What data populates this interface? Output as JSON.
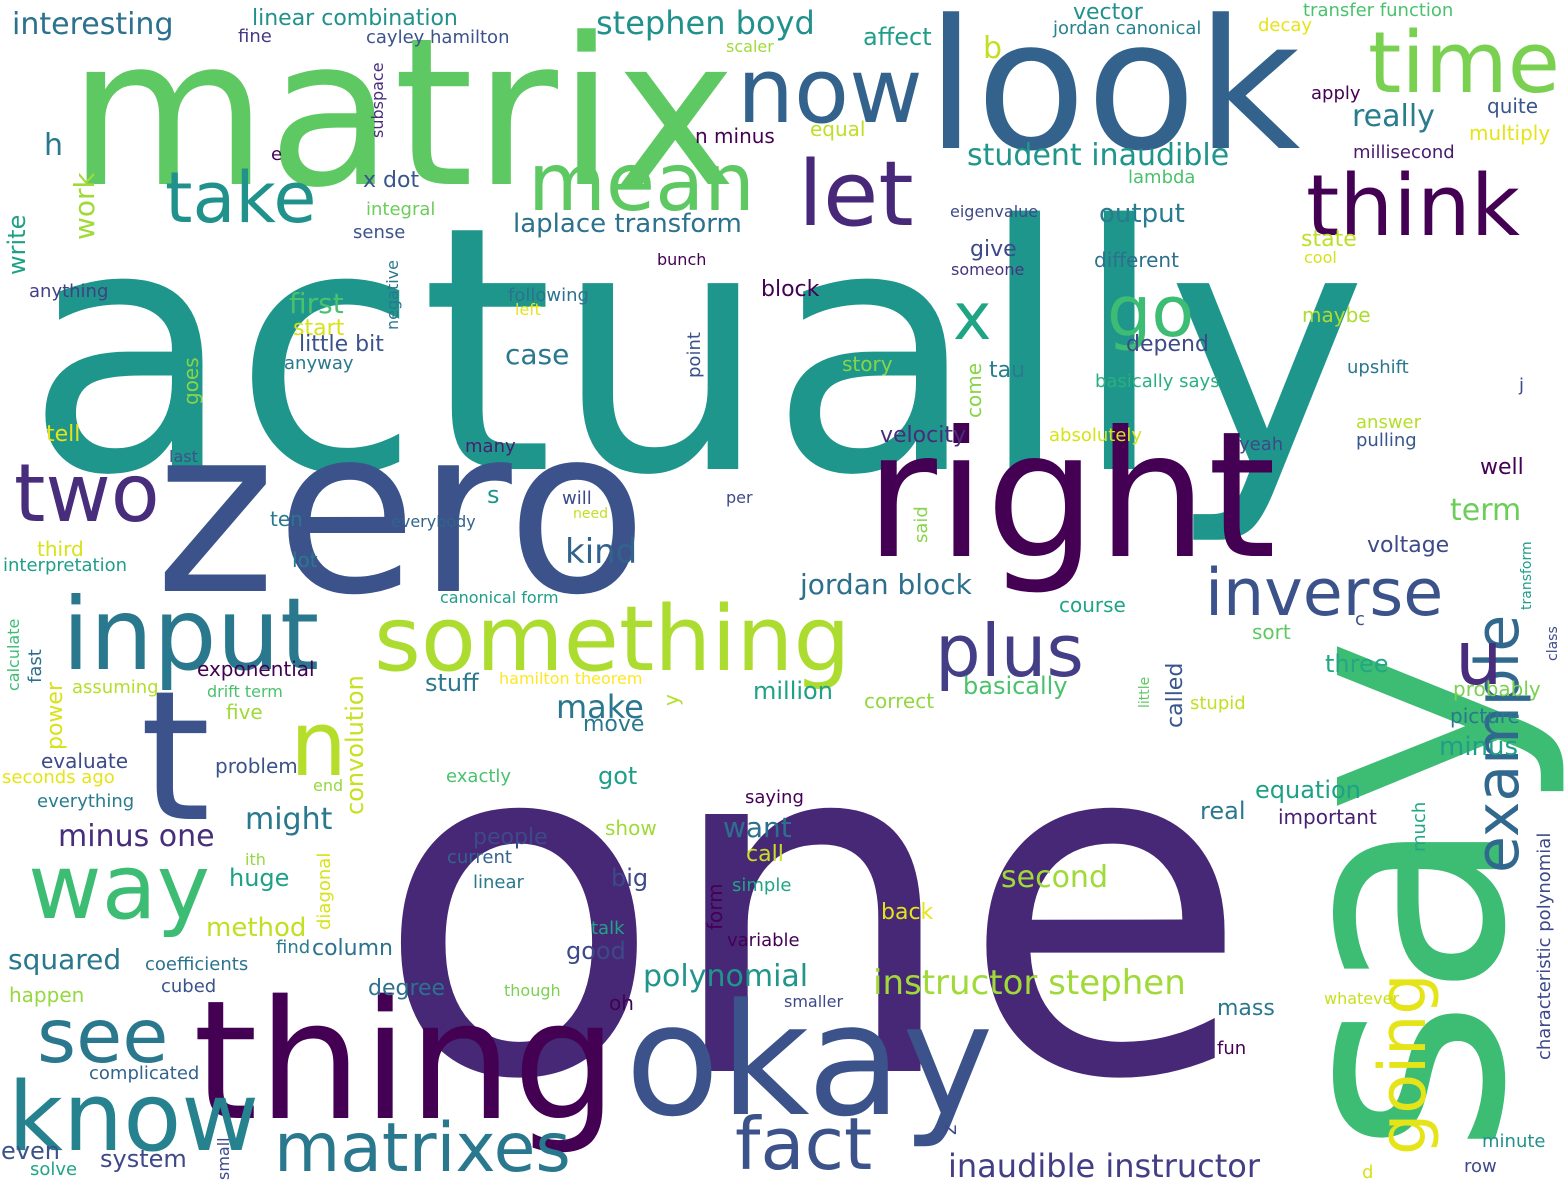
{
  "words": [
    {
      "text": "actually",
      "color": "#1f968b"
    },
    {
      "text": "one",
      "color": "#472877"
    },
    {
      "text": "zero",
      "color": "#3b528b"
    },
    {
      "text": "say",
      "color": "#3dbc74"
    },
    {
      "text": "matrix",
      "color": "#5ec962"
    },
    {
      "text": "look",
      "color": "#33638d"
    },
    {
      "text": "thing",
      "color": "#440154"
    },
    {
      "text": "right",
      "color": "#440154"
    },
    {
      "text": "okay",
      "color": "#3b528b"
    },
    {
      "text": "t",
      "color": "#3b528b"
    },
    {
      "text": "time",
      "color": "#7ad151"
    },
    {
      "text": "now",
      "color": "#33638d"
    },
    {
      "text": "mean",
      "color": "#5ec962"
    },
    {
      "text": "take",
      "color": "#21918c"
    },
    {
      "text": "let",
      "color": "#482878"
    },
    {
      "text": "think",
      "color": "#440154"
    },
    {
      "text": "input",
      "color": "#2a788e"
    },
    {
      "text": "two",
      "color": "#472d7b"
    },
    {
      "text": "something",
      "color": "#addc30"
    },
    {
      "text": "way",
      "color": "#3dbc74"
    },
    {
      "text": "see",
      "color": "#2a788e"
    },
    {
      "text": "know",
      "color": "#26828e"
    },
    {
      "text": "matrixes",
      "color": "#2a788e"
    },
    {
      "text": "fact",
      "color": "#3b528b"
    },
    {
      "text": "inverse",
      "color": "#3b528b"
    },
    {
      "text": "plus",
      "color": "#433e85"
    },
    {
      "text": "going",
      "color": "#e5e419"
    },
    {
      "text": "example",
      "color": "#31688e"
    },
    {
      "text": "n",
      "color": "#b5de2b"
    },
    {
      "text": "u",
      "color": "#472d7b"
    },
    {
      "text": "go",
      "color": "#3dbc74"
    },
    {
      "text": "x",
      "color": "#20a486"
    },
    {
      "text": "stephen boyd",
      "color": "#21918c"
    },
    {
      "text": "interesting",
      "color": "#2c728e"
    },
    {
      "text": "linear combination",
      "color": "#21918c"
    },
    {
      "text": "cayley hamilton",
      "color": "#3b528b"
    },
    {
      "text": "vector",
      "color": "#21918c"
    },
    {
      "text": "jordan canonical",
      "color": "#26828e"
    },
    {
      "text": "decay",
      "color": "#e5e419"
    },
    {
      "text": "transfer function",
      "color": "#4ac16d"
    },
    {
      "text": "fine",
      "color": "#443a83"
    },
    {
      "text": "affect",
      "color": "#1f9e89"
    },
    {
      "text": "b",
      "color": "#c2df23"
    },
    {
      "text": "scaler",
      "color": "#a0da39"
    },
    {
      "text": "apply",
      "color": "#440154"
    },
    {
      "text": "quite",
      "color": "#39568c"
    },
    {
      "text": "really",
      "color": "#287c8e"
    },
    {
      "text": "equal",
      "color": "#bddf26"
    },
    {
      "text": "multiply",
      "color": "#e5e419"
    },
    {
      "text": "millisecond",
      "color": "#481b6d"
    },
    {
      "text": "n minus",
      "color": "#440154"
    },
    {
      "text": "student inaudible",
      "color": "#1f958b"
    },
    {
      "text": "lambda",
      "color": "#4ac16d"
    },
    {
      "text": "h",
      "color": "#2a788e"
    },
    {
      "text": "e",
      "color": "#440154"
    },
    {
      "text": "subspace",
      "color": "#472d7b"
    },
    {
      "text": "x dot",
      "color": "#39568c"
    },
    {
      "text": "integral",
      "color": "#6ccd5a"
    },
    {
      "text": "eigenvalue",
      "color": "#3e4989"
    },
    {
      "text": "output",
      "color": "#287c8e"
    },
    {
      "text": "state",
      "color": "#bddf26"
    },
    {
      "text": "cool",
      "color": "#d8e219"
    },
    {
      "text": "laplace transform",
      "color": "#2c728e"
    },
    {
      "text": "sense",
      "color": "#3b528b"
    },
    {
      "text": "give",
      "color": "#3e4989"
    },
    {
      "text": "someone",
      "color": "#46327e"
    },
    {
      "text": "different",
      "color": "#2d708e"
    },
    {
      "text": "bunch",
      "color": "#440154"
    },
    {
      "text": "work",
      "color": "#a0da39"
    },
    {
      "text": "write",
      "color": "#1fa187"
    },
    {
      "text": "anything",
      "color": "#433e85"
    },
    {
      "text": "negative",
      "color": "#2a788e"
    },
    {
      "text": "first",
      "color": "#4ac16d"
    },
    {
      "text": "following",
      "color": "#2c728e"
    },
    {
      "text": "left",
      "color": "#e5e419"
    },
    {
      "text": "block",
      "color": "#440154"
    },
    {
      "text": "maybe",
      "color": "#addc30"
    },
    {
      "text": "start",
      "color": "#d8e219"
    },
    {
      "text": "little bit",
      "color": "#3b528b"
    },
    {
      "text": "case",
      "color": "#2a788e"
    },
    {
      "text": "depend",
      "color": "#3e4989"
    },
    {
      "text": "anyway",
      "color": "#2a788e"
    },
    {
      "text": "point",
      "color": "#3b528b"
    },
    {
      "text": "story",
      "color": "#86d549"
    },
    {
      "text": "tau",
      "color": "#287c8e"
    },
    {
      "text": "come",
      "color": "#86d549"
    },
    {
      "text": "basically says",
      "color": "#2ab07f"
    },
    {
      "text": "upshift",
      "color": "#2a788e"
    },
    {
      "text": "goes",
      "color": "#86d549"
    },
    {
      "text": "j",
      "color": "#3e4989"
    },
    {
      "text": "tell",
      "color": "#e5e419"
    },
    {
      "text": "last",
      "color": "#3b528b"
    },
    {
      "text": "many",
      "color": "#481f70"
    },
    {
      "text": "velocity",
      "color": "#472d7b"
    },
    {
      "text": "absolutely",
      "color": "#d8e219"
    },
    {
      "text": "yeah",
      "color": "#3e4989"
    },
    {
      "text": "answer",
      "color": "#b5de2b"
    },
    {
      "text": "pulling",
      "color": "#39568c"
    },
    {
      "text": "well",
      "color": "#440154"
    },
    {
      "text": "s",
      "color": "#1f968b"
    },
    {
      "text": "will",
      "color": "#3e4989"
    },
    {
      "text": "need",
      "color": "#c2df23"
    },
    {
      "text": "per",
      "color": "#3e4989"
    },
    {
      "text": "said",
      "color": "#86d549"
    },
    {
      "text": "term",
      "color": "#6ccd5a"
    },
    {
      "text": "ten",
      "color": "#2a788e"
    },
    {
      "text": "everybody",
      "color": "#33638d"
    },
    {
      "text": "transform",
      "color": "#1f9e89"
    },
    {
      "text": "third",
      "color": "#d8e219"
    },
    {
      "text": "kind",
      "color": "#33638d"
    },
    {
      "text": "interpretation",
      "color": "#1f9e89"
    },
    {
      "text": "lot",
      "color": "#2a788e"
    },
    {
      "text": "voltage",
      "color": "#3e4989"
    },
    {
      "text": "canonical form",
      "color": "#1f9e89"
    },
    {
      "text": "jordan block",
      "color": "#2d708e"
    },
    {
      "text": "course",
      "color": "#20a386"
    },
    {
      "text": "c",
      "color": "#3b528b"
    },
    {
      "text": "class",
      "color": "#3e4989"
    },
    {
      "text": "calculate",
      "color": "#3dbc74"
    },
    {
      "text": "sort",
      "color": "#5ec962"
    },
    {
      "text": "exponential",
      "color": "#440154"
    },
    {
      "text": "convolution",
      "color": "#c8e020"
    },
    {
      "text": "fast",
      "color": "#2d708e"
    },
    {
      "text": "assuming",
      "color": "#b5de2b"
    },
    {
      "text": "drift term",
      "color": "#4ac16d"
    },
    {
      "text": "hamilton theorem",
      "color": "#fde725"
    },
    {
      "text": "stuff",
      "color": "#2a788e"
    },
    {
      "text": "three",
      "color": "#22a785"
    },
    {
      "text": "little",
      "color": "#5ec962"
    },
    {
      "text": "called",
      "color": "#39568c"
    },
    {
      "text": "probably",
      "color": "#7ad151"
    },
    {
      "text": "power",
      "color": "#d8e219"
    },
    {
      "text": "five",
      "color": "#a0da39"
    },
    {
      "text": "million",
      "color": "#1fa187"
    },
    {
      "text": "basically",
      "color": "#4ac16d"
    },
    {
      "text": "make",
      "color": "#2a788e"
    },
    {
      "text": "y",
      "color": "#b5de2b"
    },
    {
      "text": "correct",
      "color": "#93d741"
    },
    {
      "text": "stupid",
      "color": "#c2df23"
    },
    {
      "text": "picture",
      "color": "#2a788e"
    },
    {
      "text": "move",
      "color": "#2a788e"
    },
    {
      "text": "minus",
      "color": "#1f9e89"
    },
    {
      "text": "evaluate",
      "color": "#3e4989"
    },
    {
      "text": "problem",
      "color": "#3b528b"
    },
    {
      "text": "seconds ago",
      "color": "#e5e419"
    },
    {
      "text": "exactly",
      "color": "#4ac16d"
    },
    {
      "text": "end",
      "color": "#95d840"
    },
    {
      "text": "everything",
      "color": "#287c8e"
    },
    {
      "text": "got",
      "color": "#1f9e89"
    },
    {
      "text": "equation",
      "color": "#1fa187"
    },
    {
      "text": "characteristic polynomial",
      "color": "#3e4989"
    },
    {
      "text": "saying",
      "color": "#440154"
    },
    {
      "text": "real",
      "color": "#2a788e"
    },
    {
      "text": "important",
      "color": "#482173"
    },
    {
      "text": "much",
      "color": "#22a785"
    },
    {
      "text": "minus one",
      "color": "#472d7b"
    },
    {
      "text": "might",
      "color": "#2a788e"
    },
    {
      "text": "want",
      "color": "#2d708e"
    },
    {
      "text": "people",
      "color": "#3e4989"
    },
    {
      "text": "show",
      "color": "#a0da39"
    },
    {
      "text": "current",
      "color": "#33638d"
    },
    {
      "text": "call",
      "color": "#c8e020"
    },
    {
      "text": "ith",
      "color": "#95d840"
    },
    {
      "text": "huge",
      "color": "#1fa187"
    },
    {
      "text": "diagonal",
      "color": "#d8e219"
    },
    {
      "text": "linear",
      "color": "#2a788e"
    },
    {
      "text": "big",
      "color": "#3e4989"
    },
    {
      "text": "simple",
      "color": "#20a486"
    },
    {
      "text": "second",
      "color": "#a0da39"
    },
    {
      "text": "method",
      "color": "#c2df23"
    },
    {
      "text": "form",
      "color": "#440154"
    },
    {
      "text": "back",
      "color": "#e5e419"
    },
    {
      "text": "find",
      "color": "#287c8e"
    },
    {
      "text": "talk",
      "color": "#20a386"
    },
    {
      "text": "variable",
      "color": "#440154"
    },
    {
      "text": "squared",
      "color": "#2a788e"
    },
    {
      "text": "column",
      "color": "#2c728e"
    },
    {
      "text": "good",
      "color": "#3e4989"
    },
    {
      "text": "polynomial",
      "color": "#1f958b"
    },
    {
      "text": "coefficients",
      "color": "#2c728e"
    },
    {
      "text": "instructor stephen",
      "color": "#a0da39"
    },
    {
      "text": "degree",
      "color": "#2c728e"
    },
    {
      "text": "cubed",
      "color": "#3b528b"
    },
    {
      "text": "happen",
      "color": "#95d840"
    },
    {
      "text": "though",
      "color": "#7ad151"
    },
    {
      "text": "oh",
      "color": "#440154"
    },
    {
      "text": "smaller",
      "color": "#3e4989"
    },
    {
      "text": "whatever",
      "color": "#c8e020"
    },
    {
      "text": "mass",
      "color": "#2a788e"
    },
    {
      "text": "fun",
      "color": "#440154"
    },
    {
      "text": "complicated",
      "color": "#33638d"
    },
    {
      "text": "even",
      "color": "#3b528b"
    },
    {
      "text": "solve",
      "color": "#20a486"
    },
    {
      "text": "system",
      "color": "#3e4989"
    },
    {
      "text": "small",
      "color": "#3e4989"
    },
    {
      "text": "z",
      "color": "#3e4989"
    },
    {
      "text": "inaudible instructor",
      "color": "#433e85"
    },
    {
      "text": "d",
      "color": "#d8e219"
    },
    {
      "text": "minute",
      "color": "#21918c"
    },
    {
      "text": "row",
      "color": "#3e4989"
    }
  ]
}
